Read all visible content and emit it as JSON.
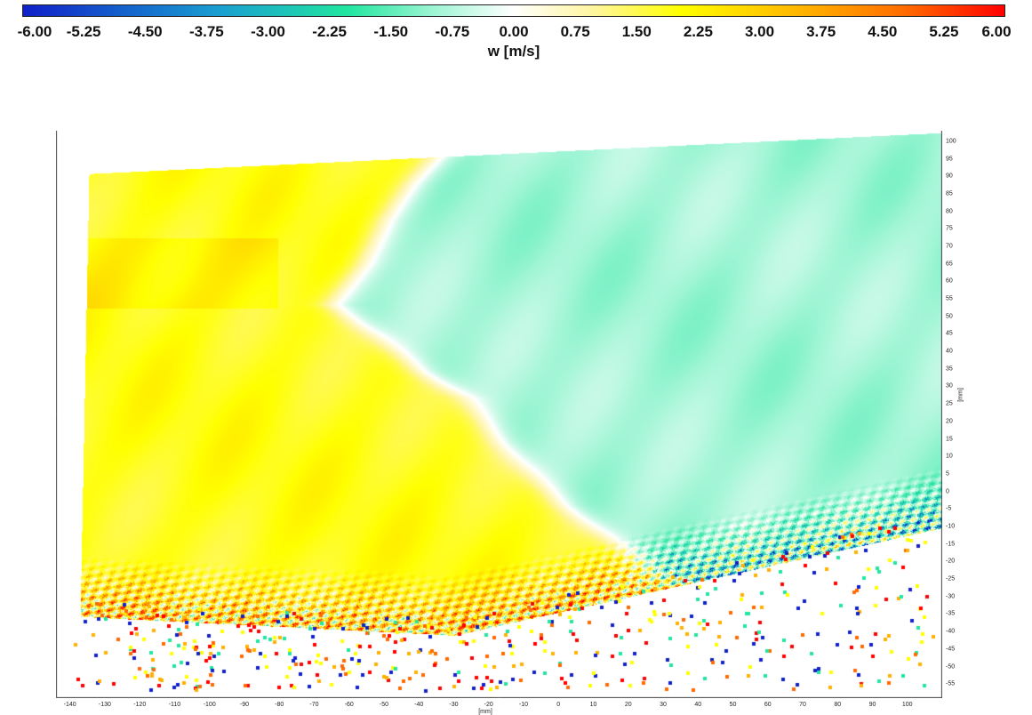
{
  "chart_data": {
    "type": "heatmap",
    "colorbar": {
      "title": "w [m/s]",
      "range": [
        -6.0,
        6.0
      ],
      "ticks": [
        "-6.00",
        "-5.25",
        "-4.50",
        "-3.75",
        "-3.00",
        "-2.25",
        "-1.50",
        "-0.75",
        "0.00",
        "0.75",
        "1.50",
        "2.25",
        "3.00",
        "3.75",
        "4.50",
        "5.25",
        "6.00"
      ],
      "colormap": [
        "#1020c8",
        "#1a9fd0",
        "#20e6a0",
        "#9ff5d5",
        "#ffffff",
        "#fff5a0",
        "#ffff00",
        "#ffb000",
        "#ff6a00",
        "#ff0000"
      ]
    },
    "x_axis": {
      "unit": "[mm]",
      "ticks": [
        "-140",
        "-130",
        "-120",
        "-110",
        "-100",
        "-90",
        "-80",
        "-70",
        "-60",
        "-50",
        "-40",
        "-30",
        "-20",
        "-10",
        "0",
        "10",
        "20",
        "30",
        "40",
        "50",
        "60",
        "70",
        "80",
        "90",
        "100"
      ],
      "range": [
        -144,
        110
      ]
    },
    "y_axis": {
      "unit": "[mm]",
      "ticks": [
        "100",
        "95",
        "90",
        "85",
        "80",
        "75",
        "70",
        "65",
        "60",
        "55",
        "50",
        "45",
        "40",
        "35",
        "30",
        "25",
        "20",
        "15",
        "10",
        "5",
        "0",
        "-5",
        "-10",
        "-15",
        "-20",
        "-25",
        "-30",
        "-35",
        "-40",
        "-45",
        "-50",
        "-55"
      ],
      "range": [
        -59,
        103
      ]
    },
    "regions": [
      {
        "name": "upward",
        "approx_w": 1.8
      },
      {
        "name": "downward",
        "approx_w": -1.9
      }
    ]
  }
}
